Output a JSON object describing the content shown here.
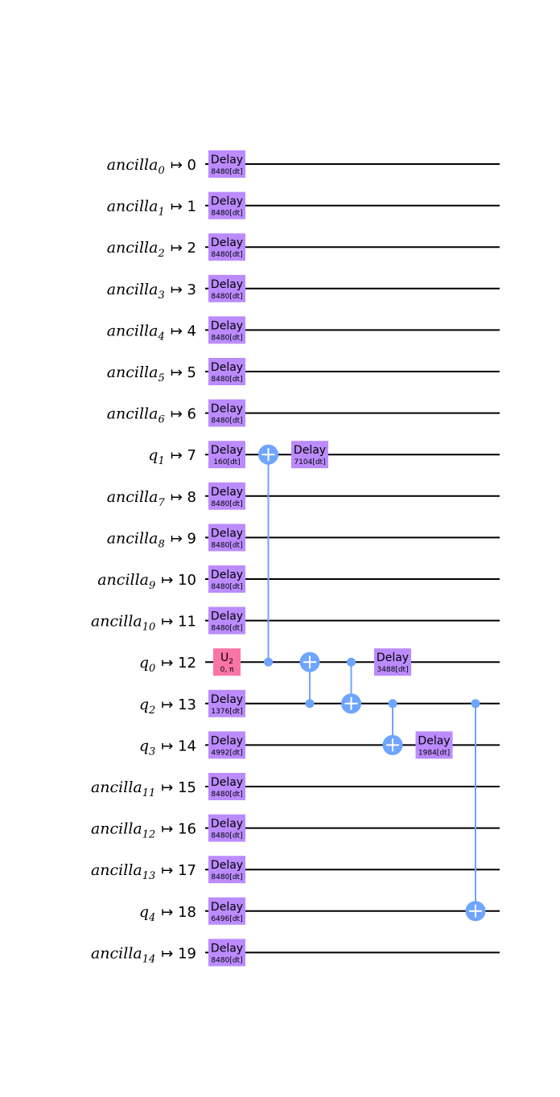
{
  "colors": {
    "delay": "#bb8bff",
    "u2": "#fa74a6",
    "cnot": "#6fa4ff",
    "wire": "#000000"
  },
  "map_symbol": "↦",
  "qubits": [
    {
      "name": "ancilla",
      "sub": "0",
      "index": "0"
    },
    {
      "name": "ancilla",
      "sub": "1",
      "index": "1"
    },
    {
      "name": "ancilla",
      "sub": "2",
      "index": "2"
    },
    {
      "name": "ancilla",
      "sub": "3",
      "index": "3"
    },
    {
      "name": "ancilla",
      "sub": "4",
      "index": "4"
    },
    {
      "name": "ancilla",
      "sub": "5",
      "index": "5"
    },
    {
      "name": "ancilla",
      "sub": "6",
      "index": "6"
    },
    {
      "name": "q",
      "sub": "1",
      "index": "7"
    },
    {
      "name": "ancilla",
      "sub": "7",
      "index": "8"
    },
    {
      "name": "ancilla",
      "sub": "8",
      "index": "9"
    },
    {
      "name": "ancilla",
      "sub": "9",
      "index": "10"
    },
    {
      "name": "ancilla",
      "sub": "10",
      "index": "11"
    },
    {
      "name": "q",
      "sub": "0",
      "index": "12"
    },
    {
      "name": "q",
      "sub": "2",
      "index": "13"
    },
    {
      "name": "q",
      "sub": "3",
      "index": "14"
    },
    {
      "name": "ancilla",
      "sub": "11",
      "index": "15"
    },
    {
      "name": "ancilla",
      "sub": "12",
      "index": "16"
    },
    {
      "name": "ancilla",
      "sub": "13",
      "index": "17"
    },
    {
      "name": "q",
      "sub": "4",
      "index": "18"
    },
    {
      "name": "ancilla",
      "sub": "14",
      "index": "19"
    }
  ],
  "gates": [
    {
      "type": "delay",
      "wire": 0,
      "col": 0,
      "label": "Delay",
      "param": "8480[dt]"
    },
    {
      "type": "delay",
      "wire": 1,
      "col": 0,
      "label": "Delay",
      "param": "8480[dt]"
    },
    {
      "type": "delay",
      "wire": 2,
      "col": 0,
      "label": "Delay",
      "param": "8480[dt]"
    },
    {
      "type": "delay",
      "wire": 3,
      "col": 0,
      "label": "Delay",
      "param": "8480[dt]"
    },
    {
      "type": "delay",
      "wire": 4,
      "col": 0,
      "label": "Delay",
      "param": "8480[dt]"
    },
    {
      "type": "delay",
      "wire": 5,
      "col": 0,
      "label": "Delay",
      "param": "8480[dt]"
    },
    {
      "type": "delay",
      "wire": 6,
      "col": 0,
      "label": "Delay",
      "param": "8480[dt]"
    },
    {
      "type": "delay",
      "wire": 7,
      "col": 0,
      "label": "Delay",
      "param": "160[dt]"
    },
    {
      "type": "delay",
      "wire": 8,
      "col": 0,
      "label": "Delay",
      "param": "8480[dt]"
    },
    {
      "type": "delay",
      "wire": 9,
      "col": 0,
      "label": "Delay",
      "param": "8480[dt]"
    },
    {
      "type": "delay",
      "wire": 10,
      "col": 0,
      "label": "Delay",
      "param": "8480[dt]"
    },
    {
      "type": "delay",
      "wire": 11,
      "col": 0,
      "label": "Delay",
      "param": "8480[dt]"
    },
    {
      "type": "u2",
      "wire": 12,
      "col": 0,
      "label": "U",
      "label_sub": "2",
      "param": "0, π"
    },
    {
      "type": "delay",
      "wire": 13,
      "col": 0,
      "label": "Delay",
      "param": "1376[dt]"
    },
    {
      "type": "delay",
      "wire": 14,
      "col": 0,
      "label": "Delay",
      "param": "4992[dt]"
    },
    {
      "type": "delay",
      "wire": 15,
      "col": 0,
      "label": "Delay",
      "param": "8480[dt]"
    },
    {
      "type": "delay",
      "wire": 16,
      "col": 0,
      "label": "Delay",
      "param": "8480[dt]"
    },
    {
      "type": "delay",
      "wire": 17,
      "col": 0,
      "label": "Delay",
      "param": "8480[dt]"
    },
    {
      "type": "delay",
      "wire": 18,
      "col": 0,
      "label": "Delay",
      "param": "6496[dt]"
    },
    {
      "type": "delay",
      "wire": 19,
      "col": 0,
      "label": "Delay",
      "param": "8480[dt]"
    },
    {
      "type": "cx",
      "col": 1,
      "control": 12,
      "target": 7
    },
    {
      "type": "delay",
      "wire": 7,
      "col": 2,
      "label": "Delay",
      "param": "7104[dt]"
    },
    {
      "type": "cx",
      "col": 2,
      "control": 13,
      "target": 12
    },
    {
      "type": "cx",
      "col": 3,
      "control": 12,
      "target": 13
    },
    {
      "type": "delay",
      "wire": 12,
      "col": 4,
      "label": "Delay",
      "param": "3488[dt]"
    },
    {
      "type": "cx",
      "col": 4,
      "control": 13,
      "target": 14
    },
    {
      "type": "delay",
      "wire": 14,
      "col": 5,
      "label": "Delay",
      "param": "1984[dt]"
    },
    {
      "type": "cx",
      "col": 6,
      "control": 13,
      "target": 18
    }
  ]
}
